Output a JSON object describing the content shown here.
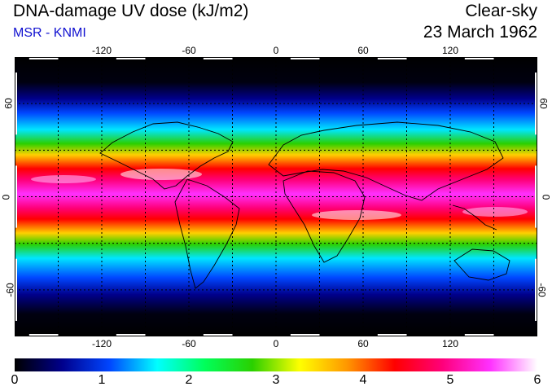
{
  "header": {
    "title": "DNA-damage UV dose (kJ/m2)",
    "subtitle": "MSR - KNMI",
    "condition": "Clear-sky",
    "date": "23 March 1962"
  },
  "map_axes": {
    "lon_ticks": [
      -120,
      -60,
      0,
      60,
      120
    ],
    "lon_tick_labels": [
      "-120",
      "-60",
      "0",
      "60",
      "120"
    ],
    "lat_ticks": [
      60,
      0,
      -60
    ],
    "lat_tick_labels_left": [
      "60",
      "0",
      "-60"
    ],
    "lat_tick_labels_right": [
      "60",
      "0",
      "-60"
    ],
    "lon_range": [
      -180,
      180
    ],
    "lat_range": [
      -90,
      90
    ],
    "grid_lon": [
      -150,
      -120,
      -90,
      -60,
      -30,
      0,
      30,
      60,
      90,
      120,
      150
    ],
    "grid_lat": [
      -60,
      -30,
      0,
      30,
      60
    ]
  },
  "colorbar": {
    "range": [
      0,
      6
    ],
    "tick_values": [
      0,
      1,
      2,
      3,
      4,
      5,
      6
    ],
    "tick_labels": [
      "0",
      "1",
      "2",
      "3",
      "4",
      "5",
      "6"
    ],
    "stops": [
      "#000000",
      "#00008c",
      "#0046ff",
      "#00ffff",
      "#00ff5a",
      "#2ad000",
      "#ffff00",
      "#ff9600",
      "#ff0000",
      "#ff007a",
      "#ff30ff",
      "#ffffff"
    ]
  }
}
